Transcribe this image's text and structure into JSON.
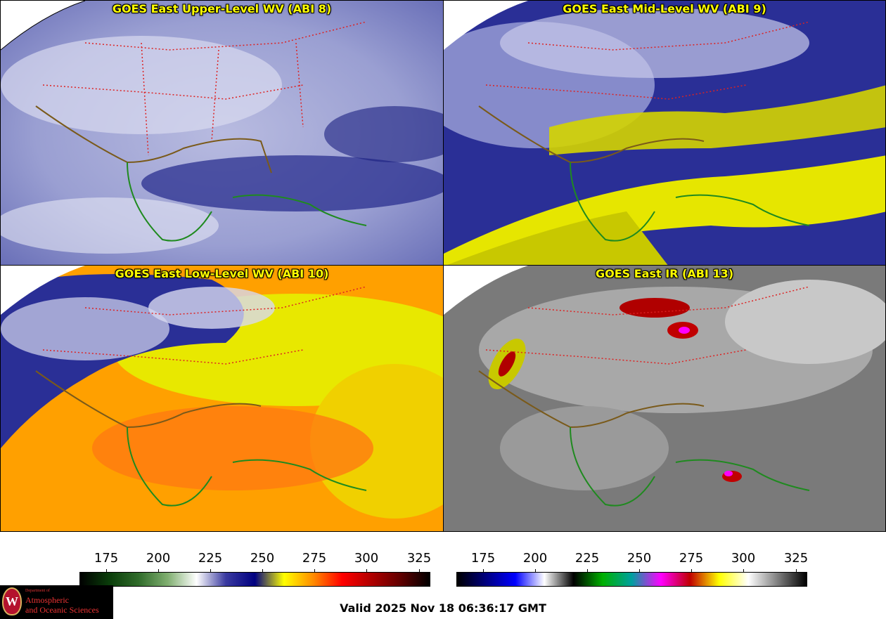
{
  "panels": [
    {
      "title": "GOES East Upper-Level WV (ABI 8)"
    },
    {
      "title": "GOES East Mid-Level WV (ABI 9)"
    },
    {
      "title": "GOES East Low-Level WV (ABI 10)"
    },
    {
      "title": "GOES East IR (ABI 13)"
    }
  ],
  "colorbars": {
    "wv": {
      "ticks": [
        "175",
        "200",
        "225",
        "250",
        "275",
        "300",
        "325"
      ],
      "colors": [
        "#000000",
        "#0a3d0a",
        "#2f6b2a",
        "#7fae6f",
        "#ffffff",
        "#3a3aa0",
        "#000080",
        "#ffff00",
        "#ff8c00",
        "#ff0000",
        "#b00000",
        "#600000",
        "#000000"
      ]
    },
    "ir": {
      "ticks": [
        "175",
        "200",
        "225",
        "250",
        "275",
        "300",
        "325"
      ],
      "colors": [
        "#000000",
        "#000080",
        "#0000ff",
        "#ffffff",
        "#000000",
        "#00b000",
        "#00a0a0",
        "#ff00ff",
        "#c00000",
        "#ffff00",
        "#ffffff",
        "#808080",
        "#000000"
      ]
    }
  },
  "valid_text": "Valid 2025 Nov 18 06:36:17 GMT",
  "logo": {
    "seal_letter": "W",
    "dept_line": "Department of",
    "line1": "Atmospheric",
    "line2": "and Oceanic Sciences"
  }
}
